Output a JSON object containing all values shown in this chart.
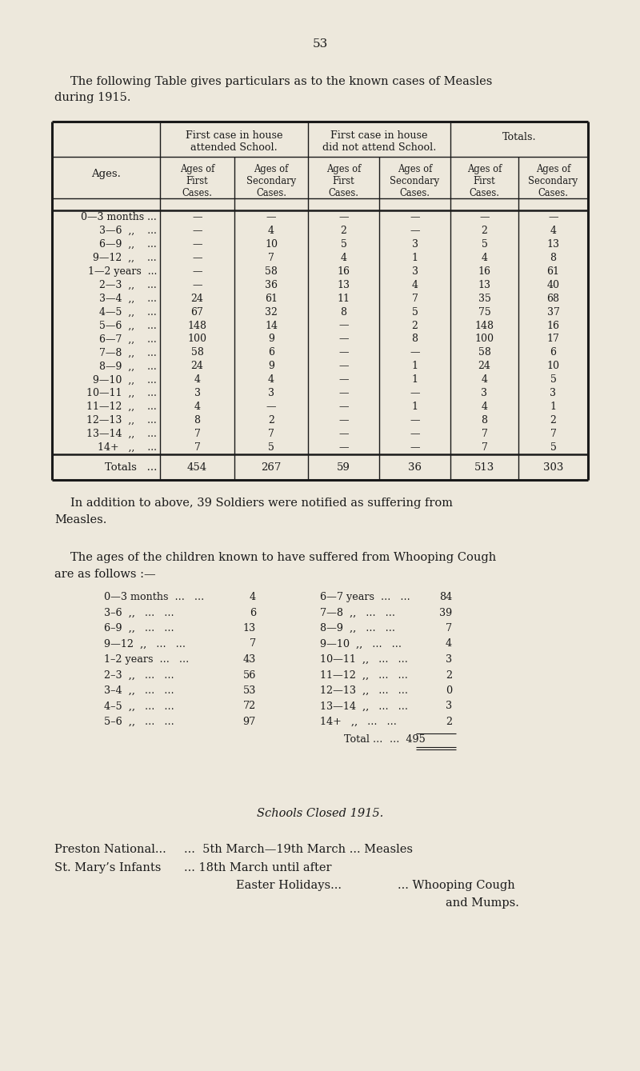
{
  "bg_color": "#ede8dc",
  "text_color": "#1a1a1a",
  "page_number": "53",
  "intro_line1": "The following Table gives particulars as to the known cases of Measles",
  "intro_line2": "during 1915.",
  "table_data": [
    [
      "0—3 months ...",
      "—",
      "—",
      "—",
      "—",
      "—",
      "—"
    ],
    [
      "3—6  ,,    ...",
      "—",
      "4",
      "2",
      "—",
      "2",
      "4"
    ],
    [
      "6—9  ,,    ...",
      "—",
      "10",
      "5",
      "3",
      "5",
      "13"
    ],
    [
      "9—12  ,,    ...",
      "—",
      "7",
      "4",
      "1",
      "4",
      "8"
    ],
    [
      "1—2 years  ...",
      "—",
      "58",
      "16",
      "3",
      "16",
      "61"
    ],
    [
      "2—3  ,,    ...",
      "—",
      "36",
      "13",
      "4",
      "13",
      "40"
    ],
    [
      "3—4  ,,    ...",
      "24",
      "61",
      "11",
      "7",
      "35",
      "68"
    ],
    [
      "4—5  ,,    ...",
      "67",
      "32",
      "8",
      "5",
      "75",
      "37"
    ],
    [
      "5—6  ,,    ...",
      "148",
      "14",
      "—",
      "2",
      "148",
      "16"
    ],
    [
      "6—7  ,,    ...",
      "100",
      "9",
      "—",
      "8",
      "100",
      "17"
    ],
    [
      "7—8  ,,    ...",
      "58",
      "6",
      "—",
      "—",
      "58",
      "6"
    ],
    [
      "8—9  ,,    ...",
      "24",
      "9",
      "—",
      "1",
      "24",
      "10"
    ],
    [
      "9—10  ,,    ...",
      "4",
      "4",
      "—",
      "1",
      "4",
      "5"
    ],
    [
      "10—11  ,,    ...",
      "3",
      "3",
      "—",
      "—",
      "3",
      "3"
    ],
    [
      "11—12  ,,    ...",
      "4",
      "—",
      "—",
      "1",
      "4",
      "1"
    ],
    [
      "12—13  ,,    ...",
      "8",
      "2",
      "—",
      "—",
      "8",
      "2"
    ],
    [
      "13—14  ,,    ...",
      "7",
      "7",
      "—",
      "—",
      "7",
      "7"
    ],
    [
      "14+   ,,    ...",
      "7",
      "5",
      "—",
      "—",
      "7",
      "5"
    ]
  ],
  "table_totals": [
    "Totals   ...",
    "454",
    "267",
    "59",
    "36",
    "513",
    "303"
  ],
  "soldiers_line1": "In addition to above, 39 Soldiers were notified as suffering from",
  "soldiers_line2": "Measles.",
  "whooping_intro1": "The ages of the children known to have suffered from Whooping Cough",
  "whooping_intro2": "are as follows :—",
  "whooping_left": [
    [
      "0—3 months  ...   ...",
      "4"
    ],
    [
      "3–6  ,,   ...   ...",
      "6"
    ],
    [
      "6–9  ,,   ...   ...",
      "13"
    ],
    [
      "9—12  ,,   ...   ...",
      "7"
    ],
    [
      "1–2 years  ...   ...",
      "43"
    ],
    [
      "2–3  ,,   ...   ...",
      "56"
    ],
    [
      "3–4  ,,   ...   ...",
      "53"
    ],
    [
      "4–5  ,,   ...   ...",
      "72"
    ],
    [
      "5–6  ,,   ...   ...",
      "97"
    ]
  ],
  "whooping_right": [
    [
      "6—7 years  ...   ...",
      "84"
    ],
    [
      "7—8  ,,   ...   ...",
      "39"
    ],
    [
      "8—9  ,,   ...   ...",
      "7"
    ],
    [
      "9—10  ,,   ...   ...",
      "4"
    ],
    [
      "10—11  ,,   ...   ...",
      "3"
    ],
    [
      "11—12  ,,   ...   ...",
      "2"
    ],
    [
      "12—13  ,,   ...   ...",
      "0"
    ],
    [
      "13—14  ,,   ...   ...",
      "3"
    ],
    [
      "14+   ,,   ...   ...",
      "2"
    ]
  ],
  "whooping_total": "495",
  "schools_title": "Schools Closed 1915.",
  "preston_label": "Preston National...",
  "preston_text": "...  5th March—19th March ... Measles",
  "stmary_label": "St. Mary’s Infants",
  "stmary_text1": "... 18th March until after",
  "stmary_text2": "Easter Holidays...",
  "stmary_text3": "... Whooping Cough",
  "stmary_text4": "and Mumps."
}
